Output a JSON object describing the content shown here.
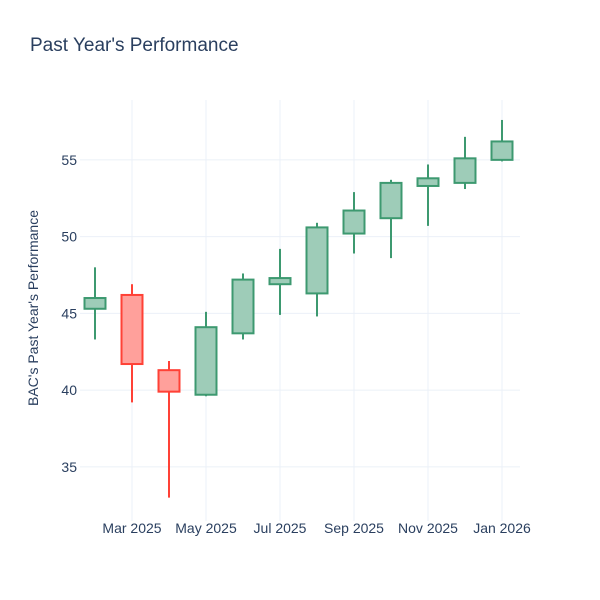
{
  "chart_data": {
    "type": "candlestick",
    "title": "Past Year's Performance",
    "xlabel": "",
    "ylabel": "BAC's Past Year's Performance",
    "y_ticks": [
      35,
      40,
      45,
      50,
      55
    ],
    "ylim": [
      31.8,
      58.9
    ],
    "grid": "on",
    "legend": "none",
    "x_ticks": [
      {
        "label": "Mar 2025",
        "month_index": 1
      },
      {
        "label": "May 2025",
        "month_index": 3
      },
      {
        "label": "Jul 2025",
        "month_index": 5
      },
      {
        "label": "Sep 2025",
        "month_index": 7
      },
      {
        "label": "Nov 2025",
        "month_index": 9
      },
      {
        "label": "Jan 2026",
        "month_index": 11
      }
    ],
    "categories": [
      "Feb 2025",
      "Mar 2025",
      "Apr 2025",
      "May 2025",
      "Jun 2025",
      "Jul 2025",
      "Aug 2025",
      "Sep 2025",
      "Oct 2025",
      "Nov 2025",
      "Dec 2025",
      "Jan 2026"
    ],
    "series": [
      {
        "month": "Feb 2025",
        "open": 45.3,
        "high": 48.0,
        "low": 43.3,
        "close": 46.0
      },
      {
        "month": "Mar 2025",
        "open": 46.2,
        "high": 46.9,
        "low": 39.2,
        "close": 41.7
      },
      {
        "month": "Apr 2025",
        "open": 41.3,
        "high": 41.9,
        "low": 33.0,
        "close": 39.9
      },
      {
        "month": "May 2025",
        "open": 39.7,
        "high": 45.1,
        "low": 39.6,
        "close": 44.1
      },
      {
        "month": "Jun 2025",
        "open": 43.7,
        "high": 47.6,
        "low": 43.3,
        "close": 47.2
      },
      {
        "month": "Jul 2025",
        "open": 46.9,
        "high": 49.2,
        "low": 44.9,
        "close": 47.3
      },
      {
        "month": "Aug 2025",
        "open": 46.3,
        "high": 50.9,
        "low": 44.8,
        "close": 50.6
      },
      {
        "month": "Sep 2025",
        "open": 50.2,
        "high": 52.9,
        "low": 48.9,
        "close": 51.7
      },
      {
        "month": "Oct 2025",
        "open": 51.2,
        "high": 53.7,
        "low": 48.6,
        "close": 53.5
      },
      {
        "month": "Nov 2025",
        "open": 53.3,
        "high": 54.7,
        "low": 50.7,
        "close": 53.8
      },
      {
        "month": "Dec 2025",
        "open": 53.5,
        "high": 56.5,
        "low": 53.1,
        "close": 55.1
      },
      {
        "month": "Jan 2026",
        "open": 55.0,
        "high": 57.6,
        "low": 54.9,
        "close": 56.2
      }
    ],
    "colors": {
      "increasing_line": "#3D9970",
      "increasing_fill": "#9ECCB8",
      "decreasing_line": "#FF4136",
      "decreasing_fill": "#FFA09B",
      "grid": "#EBF0F8",
      "text": "#2A3F5F",
      "background": "#FFFFFF"
    }
  }
}
